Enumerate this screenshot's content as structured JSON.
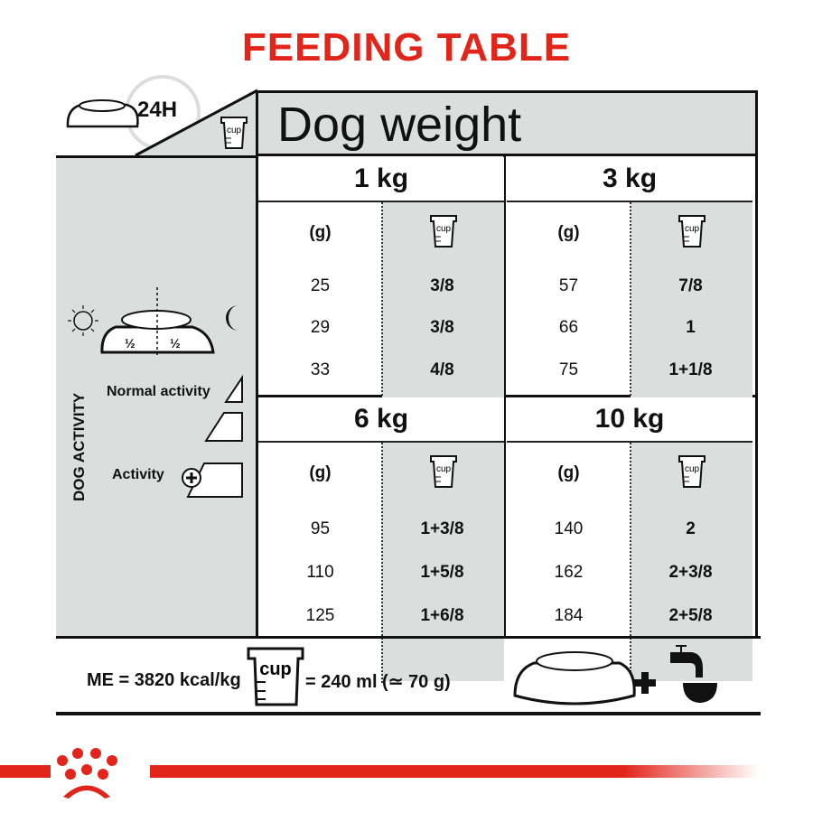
{
  "title": "FEEDING TABLE",
  "header": {
    "period": "24H",
    "dog_weight": "Dog weight",
    "cup_label": "cup"
  },
  "side": {
    "dog_activity": "DOG ACTIVITY",
    "half_left": "½",
    "half_right": "½",
    "normal_activity": "Normal activity",
    "activity": "Activity"
  },
  "columns": {
    "grams": "(g)",
    "cup": "cup"
  },
  "blocks": [
    {
      "weight": "1 kg",
      "rows": [
        {
          "g": "25",
          "cup": "3/8"
        },
        {
          "g": "29",
          "cup": "3/8"
        },
        {
          "g": "33",
          "cup": "4/8"
        }
      ]
    },
    {
      "weight": "3 kg",
      "rows": [
        {
          "g": "57",
          "cup": "7/8"
        },
        {
          "g": "66",
          "cup": "1"
        },
        {
          "g": "75",
          "cup": "1+1/8"
        }
      ]
    },
    {
      "weight": "6 kg",
      "rows": [
        {
          "g": "95",
          "cup": "1+3/8"
        },
        {
          "g": "110",
          "cup": "1+5/8"
        },
        {
          "g": "125",
          "cup": "1+6/8"
        }
      ]
    },
    {
      "weight": "10 kg",
      "rows": [
        {
          "g": "140",
          "cup": "2"
        },
        {
          "g": "162",
          "cup": "2+3/8"
        },
        {
          "g": "184",
          "cup": "2+5/8"
        }
      ]
    }
  ],
  "footer": {
    "energy": "ME = 3820 kcal/kg",
    "cup_label": "cup",
    "cup_equiv": "= 240 ml (≃ 70 g)",
    "plus": "+"
  },
  "brand": {
    "logo": "Royal Canin crown",
    "color": "#e1251b"
  },
  "colors": {
    "panel_gray": "#dcdddd",
    "title_red": "#e1251b"
  }
}
